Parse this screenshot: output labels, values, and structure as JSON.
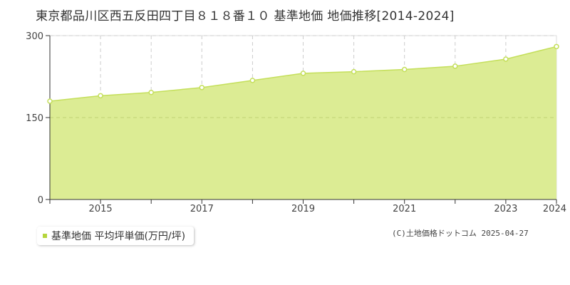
{
  "title": "東京都品川区西五反田四丁目８１８番１０ 基準地価 地価推移[2014-2024]",
  "copyright": "(C)土地価格ドットコム 2025-04-27",
  "colors": {
    "fill": "#dcec94",
    "line": "#c4df5a",
    "legend": "#b5d53c",
    "grid": "#cccccc"
  },
  "chart_data": {
    "type": "area",
    "title": "東京都品川区西五反田四丁目８１８番１０ 基準地価 地価推移[2014-2024]",
    "xlabel": "",
    "ylabel": "",
    "ylim": [
      0,
      300
    ],
    "xlim": [
      2014,
      2024
    ],
    "y_ticks": [
      "0",
      "150",
      "300"
    ],
    "y_tick_values": [
      0,
      150,
      300
    ],
    "x_tick_labels": [
      "2015",
      "2017",
      "2019",
      "2021",
      "2023",
      "2024"
    ],
    "x_tick_values": [
      2015,
      2017,
      2019,
      2021,
      2023,
      2024
    ],
    "grid": true,
    "legend_position": "bottom-left",
    "series": [
      {
        "name": "基準地価 平均坪単価(万円/坪)",
        "x": [
          2014,
          2015,
          2016,
          2017,
          2018,
          2019,
          2020,
          2021,
          2022,
          2023,
          2024
        ],
        "values": [
          180,
          190,
          196,
          205,
          218,
          231,
          234,
          238,
          244,
          257,
          280
        ]
      }
    ]
  }
}
